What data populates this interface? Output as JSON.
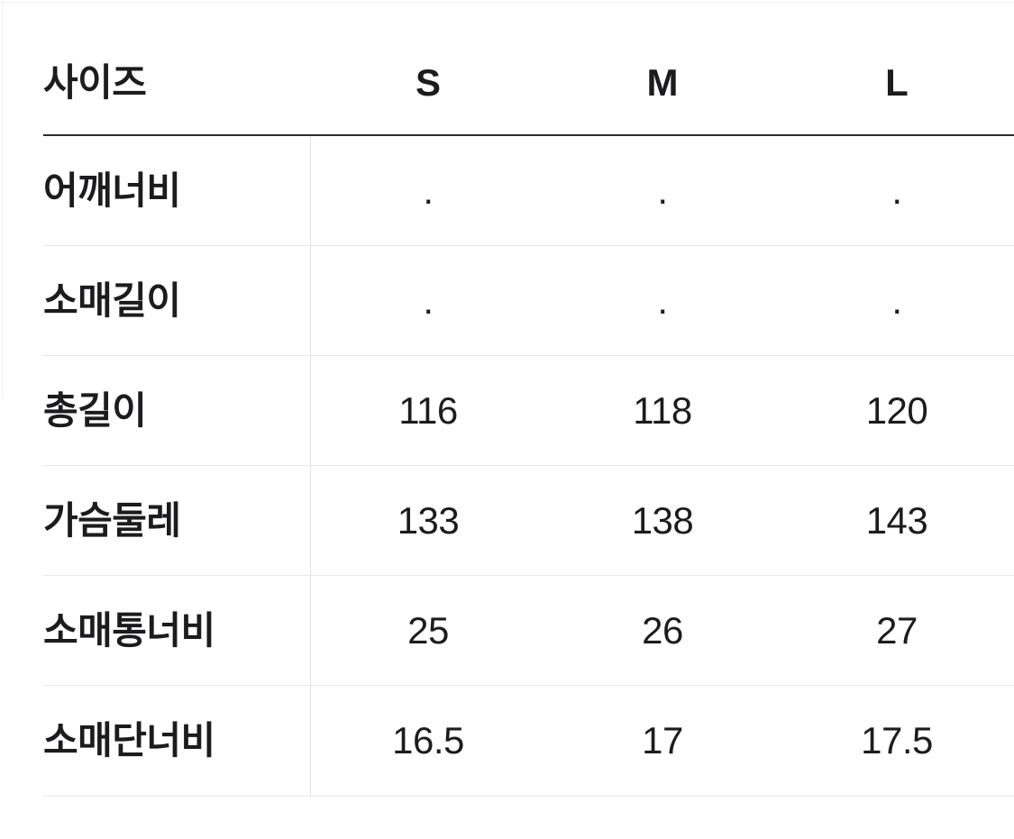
{
  "table": {
    "header": {
      "label": "사이즈",
      "sizes": [
        "S",
        "M",
        "L"
      ]
    },
    "rows": [
      {
        "label": "어깨너비",
        "values": [
          ".",
          ".",
          "."
        ]
      },
      {
        "label": "소매길이",
        "values": [
          ".",
          ".",
          "."
        ]
      },
      {
        "label": "총길이",
        "values": [
          "116",
          "118",
          "120"
        ]
      },
      {
        "label": "가슴둘레",
        "values": [
          "133",
          "138",
          "143"
        ]
      },
      {
        "label": "소매통너비",
        "values": [
          "25",
          "26",
          "27"
        ]
      },
      {
        "label": "소매단너비",
        "values": [
          "16.5",
          "17",
          "17.5"
        ]
      }
    ]
  },
  "colors": {
    "text": "#1c1c1e",
    "header_rule": "#2b2b2b",
    "row_divider": "#e7e7e7",
    "column_divider": "#e2e2e2",
    "background": "#ffffff"
  }
}
